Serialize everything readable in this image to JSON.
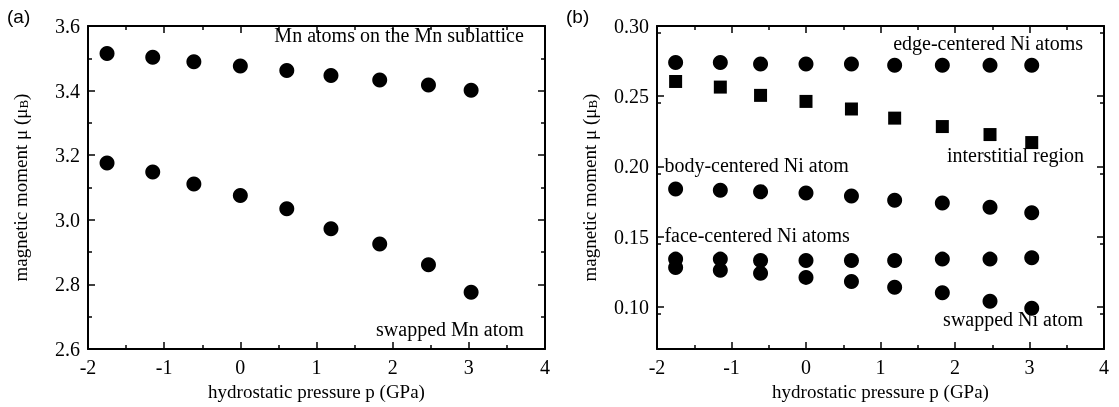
{
  "chart_data": [
    {
      "type": "scatter",
      "title": "(a)",
      "xlabel": "hydrostatic pressure p (GPa)",
      "ylabel": "magnetic moment μ (μ$_{B}$)",
      "x": [
        -1.75,
        -1.15,
        -0.61,
        0,
        0.61,
        1.19,
        1.83,
        2.47,
        3.03
      ],
      "xlim": [
        -2,
        4
      ],
      "xticks": [
        -2,
        -1,
        0,
        1,
        2,
        3,
        4
      ],
      "ylim": [
        2.6,
        3.6
      ],
      "yticks": [
        2.6,
        2.8,
        {
          "value": 3,
          "label": "3.0"
        },
        3.2,
        3.4,
        3.6
      ],
      "grid": false,
      "legend": "right",
      "marker": "circle",
      "series": [
        {
          "name": "Mn atoms on the Mn sublattice",
          "color": "#000000",
          "values": [
            3.515,
            3.503,
            3.489,
            3.476,
            3.462,
            3.447,
            3.433,
            3.417,
            3.401
          ]
        },
        {
          "name": "swapped Mn atom",
          "color": "#000000",
          "values": [
            3.176,
            3.148,
            3.111,
            3.075,
            3.034,
            2.972,
            2.925,
            2.861,
            2.776
          ]
        }
      ]
    },
    {
      "type": "scatter",
      "title": "(b)",
      "xlabel": "hydrostatic pressure p (GPa)",
      "ylabel": "magnetic moment μ (μ$_{B}$)",
      "x": [
        -1.75,
        -1.15,
        -0.61,
        0,
        0.61,
        1.19,
        1.83,
        2.47,
        3.03
      ],
      "xlim": [
        -2,
        4
      ],
      "xticks": [
        -2,
        -1,
        0,
        1,
        2,
        3,
        4
      ],
      "ylim": [
        0.07,
        0.3
      ],
      "yticks": [
        {
          "value": 0.1,
          "label": "0.10"
        },
        0.15,
        {
          "value": 0.2,
          "label": "0.20"
        },
        0.25,
        {
          "value": 0.3,
          "label": "0.30"
        }
      ],
      "grid": false,
      "legend": "right",
      "marker": "circle",
      "series": [
        {
          "name": "edge-centered Ni atoms",
          "color": "#000000",
          "values": [
            0.274,
            0.274,
            0.273,
            0.273,
            0.273,
            0.272,
            0.272,
            0.272,
            0.272
          ]
        },
        {
          "name": "interstitial region",
          "color": "#000000",
          "marker": "square",
          "values": [
            0.2605,
            0.2565,
            0.2506,
            0.2463,
            0.2409,
            0.2344,
            0.2284,
            0.2227,
            0.217
          ]
        },
        {
          "name": "body-centered Ni atom",
          "color": "#000000",
          "values": [
            0.184,
            0.183,
            0.182,
            0.181,
            0.179,
            0.176,
            0.174,
            0.171,
            0.167
          ]
        },
        {
          "name": "face-centered Ni atoms",
          "color": "#000000",
          "values": [
            0.134,
            0.134,
            0.133,
            0.133,
            0.133,
            0.133,
            0.134,
            0.134,
            0.135
          ]
        },
        {
          "name": "swapped Ni atom",
          "color": "#000000",
          "values": [
            0.128,
            0.126,
            0.124,
            0.121,
            0.118,
            0.114,
            0.11,
            0.104,
            0.099
          ]
        }
      ]
    }
  ]
}
